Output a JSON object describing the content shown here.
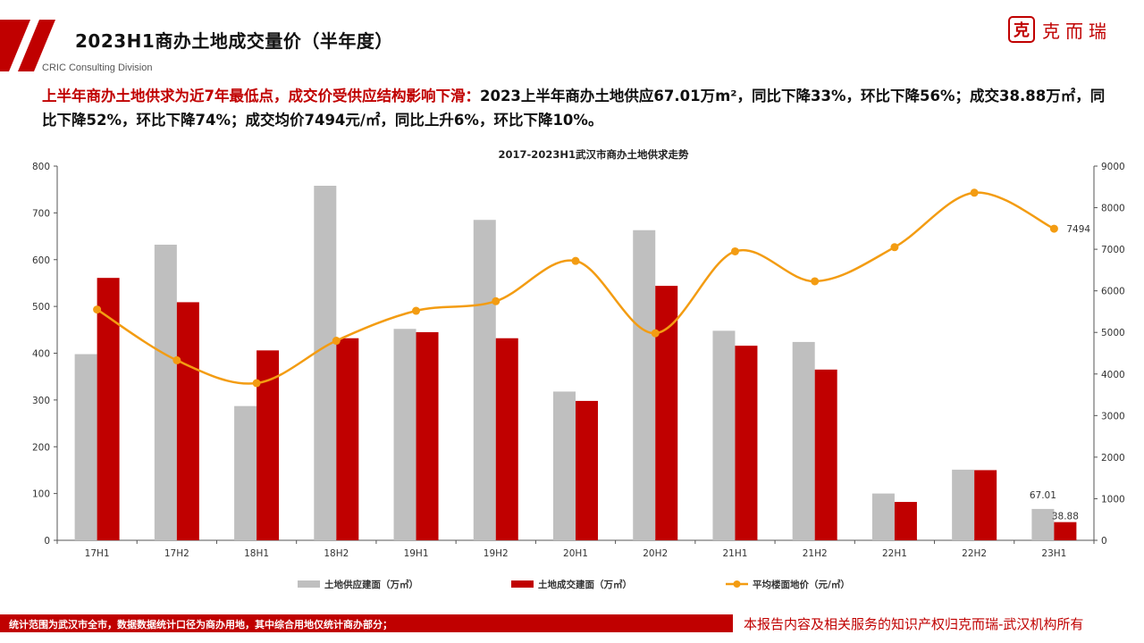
{
  "header": {
    "title": "2023H1商办土地成交量价（半年度）",
    "division": "CRIC Consulting Division",
    "logo_mark": "克",
    "logo_text": "克而瑞"
  },
  "summary": {
    "highlight": "上半年商办土地供求为近7年最低点，成交价受供应结构影响下滑：",
    "detail": "2023上半年商办土地供应67.01万m²，同比下降33%，环比下降56%；成交38.88万㎡，同比下降52%，环比下降74%；成交均价7494元/㎡，同比上升6%，环比下降10%。"
  },
  "chart_data": {
    "type": "bar",
    "title": "2017-2023H1武汉市商办土地供求走势",
    "categories": [
      "17H1",
      "17H2",
      "18H1",
      "18H2",
      "19H1",
      "19H2",
      "20H1",
      "20H2",
      "21H1",
      "21H2",
      "22H1",
      "22H2",
      "23H1"
    ],
    "series": [
      {
        "name": "土地供应建面（万㎡）",
        "type": "bar",
        "axis": "left",
        "color": "#bfbfbf",
        "values": [
          398,
          632,
          287,
          758,
          452,
          685,
          318,
          663,
          448,
          424,
          100,
          151,
          67.01
        ]
      },
      {
        "name": "土地成交建面（万㎡）",
        "type": "bar",
        "axis": "left",
        "color": "#c00000",
        "values": [
          561,
          509,
          406,
          432,
          445,
          432,
          298,
          544,
          416,
          365,
          82,
          150,
          38.88
        ]
      },
      {
        "name": "平均楼面地价（元/㎡）",
        "type": "line",
        "axis": "right",
        "color": "#f39c12",
        "values": [
          5550,
          4330,
          3780,
          4800,
          5520,
          5750,
          6720,
          4980,
          6950,
          6230,
          7050,
          8360,
          7494
        ]
      }
    ],
    "left_axis": {
      "ylim": [
        0,
        800
      ],
      "ticks": [
        "0",
        "100",
        "200",
        "300",
        "400",
        "500",
        "600",
        "700",
        "800"
      ]
    },
    "right_axis": {
      "ylim": [
        0,
        9000
      ],
      "ticks": [
        "0",
        "1000",
        "2000",
        "3000",
        "4000",
        "5000",
        "6000",
        "7000",
        "8000",
        "9000"
      ]
    },
    "data_labels": [
      {
        "series": 0,
        "index": 12,
        "text": "67.01"
      },
      {
        "series": 1,
        "index": 12,
        "text": "38.88"
      },
      {
        "series": 2,
        "index": 12,
        "text": "7494"
      }
    ],
    "legend_position": "bottom",
    "grid": false
  },
  "footer": {
    "left": "统计范围为武汉市全市，数据数据统计口径为商办用地，其中综合用地仅统计商办部分；",
    "right": "本报告内容及相关服务的知识产权归克而瑞-武汉机构所有"
  }
}
